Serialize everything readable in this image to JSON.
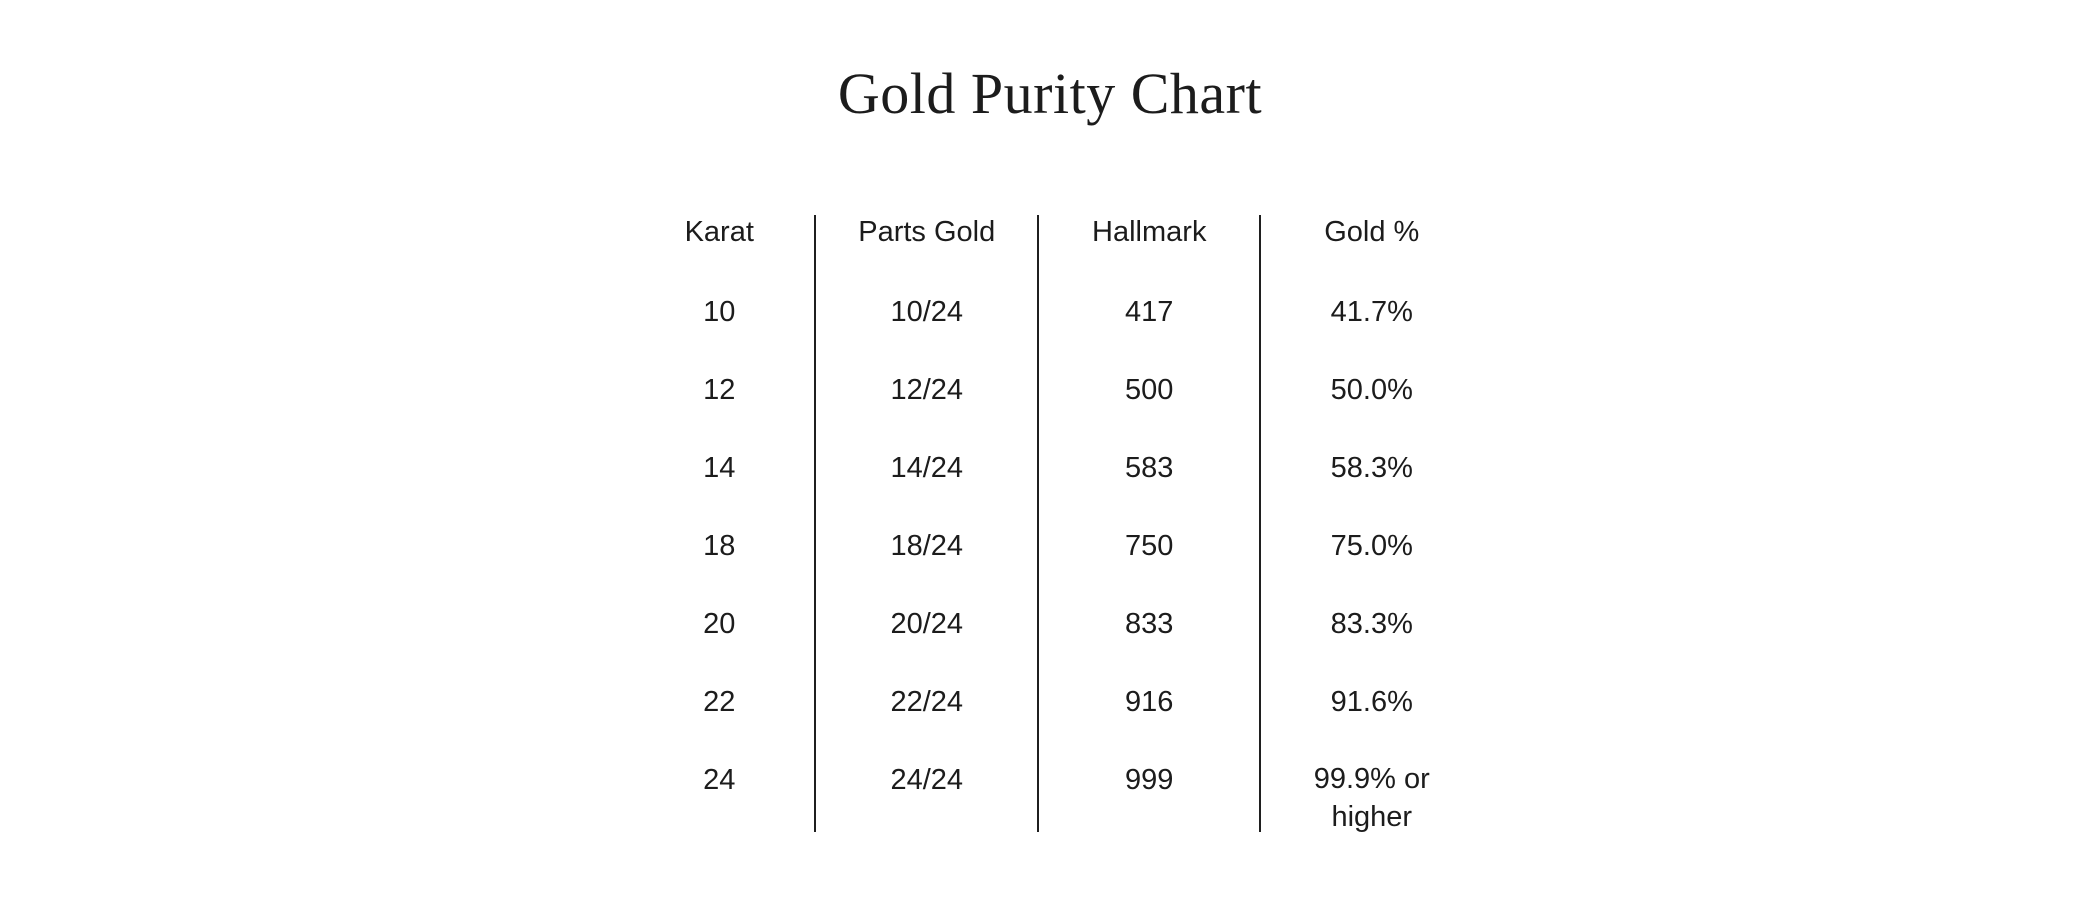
{
  "colors": {
    "background": "#ffffff",
    "text": "#1c1c1c",
    "divider": "#1f1f1f"
  },
  "chart_data": {
    "type": "table",
    "title": "Gold Purity Chart",
    "columns": [
      "Karat",
      "Parts Gold",
      "Hallmark",
      "Gold %"
    ],
    "rows": [
      [
        "10",
        "10/24",
        "417",
        "41.7%"
      ],
      [
        "12",
        "12/24",
        "500",
        "50.0%"
      ],
      [
        "14",
        "14/24",
        "583",
        "58.3%"
      ],
      [
        "18",
        "18/24",
        "750",
        "75.0%"
      ],
      [
        "20",
        "20/24",
        "833",
        "83.3%"
      ],
      [
        "22",
        "22/24",
        "916",
        "91.6%"
      ],
      [
        "24",
        "24/24",
        "999",
        "99.9% or higher"
      ]
    ],
    "layout": {
      "column_dividers": true,
      "horizontal_lines": false,
      "header_row": true
    }
  }
}
